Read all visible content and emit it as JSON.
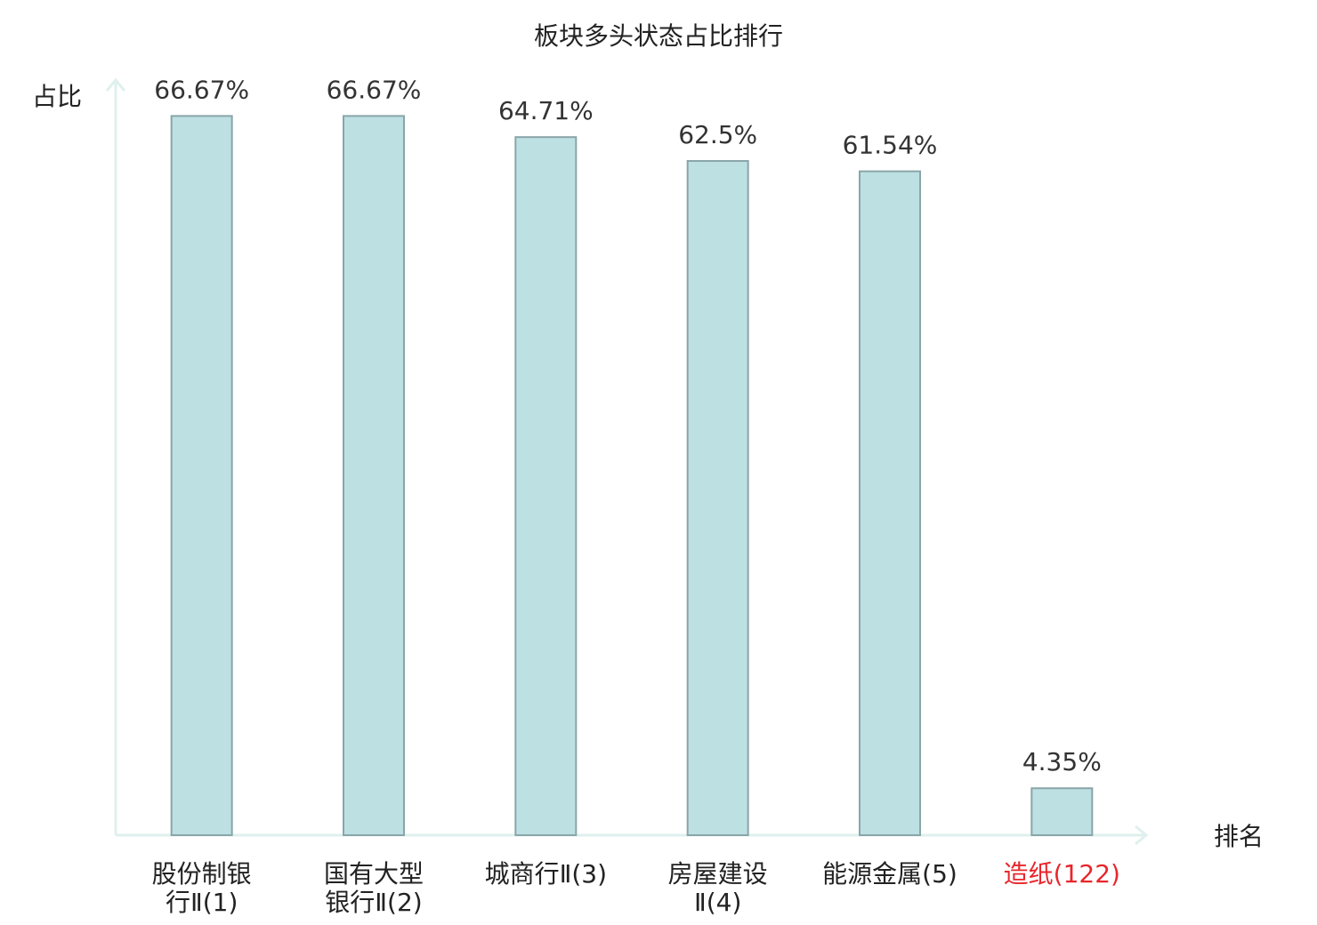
{
  "chart_data": {
    "type": "bar",
    "title": "板块多头状态占比排行",
    "y_label": "占比",
    "x_label": "排名",
    "categories": [
      "股份制银行Ⅱ(1)",
      "国有大型银行Ⅱ(2)",
      "城商行Ⅱ(3)",
      "房屋建设Ⅱ(4)",
      "能源金属(5)",
      "造纸(122)"
    ],
    "values": [
      66.67,
      66.67,
      64.71,
      62.5,
      61.54,
      4.35
    ],
    "value_labels": [
      "66.67%",
      "66.67%",
      "64.71%",
      "62.5%",
      "61.54%",
      "4.35%"
    ],
    "color": "#bde0e3",
    "edge_color": "#8aa5a8",
    "label_colors": [
      "#222222",
      "#222222",
      "#222222",
      "#222222",
      "#222222",
      "#e8262b"
    ],
    "ylim": [
      0,
      70
    ]
  }
}
